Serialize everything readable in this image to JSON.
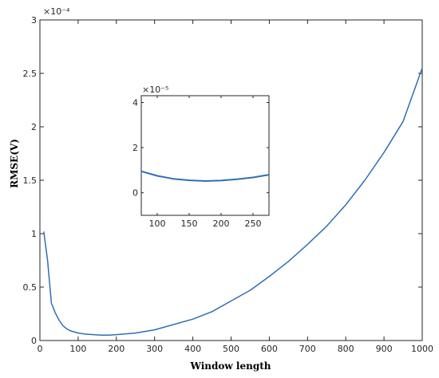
{
  "chart_data": [
    {
      "type": "line",
      "xlabel": "Window length",
      "ylabel": "RMSE(V)",
      "exponent_label": "×10⁻⁴",
      "xlim": [
        0,
        1000
      ],
      "ylim": [
        0,
        3
      ],
      "x_ticks": [
        0,
        100,
        200,
        300,
        400,
        500,
        600,
        700,
        800,
        900,
        1000
      ],
      "y_ticks": [
        0,
        0.5,
        1,
        1.5,
        2,
        2.5,
        3
      ],
      "grid": false,
      "series": [
        {
          "color": "#2f6eb5",
          "x": [
            10,
            20,
            30,
            40,
            50,
            60,
            70,
            80,
            100,
            120,
            140,
            160,
            180,
            200,
            250,
            300,
            350,
            400,
            450,
            500,
            550,
            600,
            650,
            700,
            750,
            800,
            850,
            900,
            950,
            1000
          ],
          "y": [
            1.02,
            0.75,
            0.35,
            0.26,
            0.19,
            0.14,
            0.11,
            0.09,
            0.07,
            0.06,
            0.055,
            0.05,
            0.05,
            0.055,
            0.07,
            0.1,
            0.15,
            0.2,
            0.27,
            0.37,
            0.47,
            0.6,
            0.74,
            0.9,
            1.07,
            1.27,
            1.5,
            1.76,
            2.05,
            2.55
          ]
        }
      ]
    },
    {
      "type": "line",
      "exponent_label": "×10⁻⁵",
      "xlim": [
        75,
        275
      ],
      "ylim": [
        -1,
        4.3
      ],
      "x_ticks": [
        100,
        150,
        200,
        250
      ],
      "y_ticks": [
        0,
        2,
        4
      ],
      "grid": false,
      "series": [
        {
          "color": "#2f6eb5",
          "x": [
            75,
            100,
            125,
            150,
            175,
            200,
            225,
            250,
            275
          ],
          "y": [
            0.95,
            0.75,
            0.62,
            0.55,
            0.52,
            0.54,
            0.6,
            0.68,
            0.8
          ]
        }
      ]
    }
  ]
}
